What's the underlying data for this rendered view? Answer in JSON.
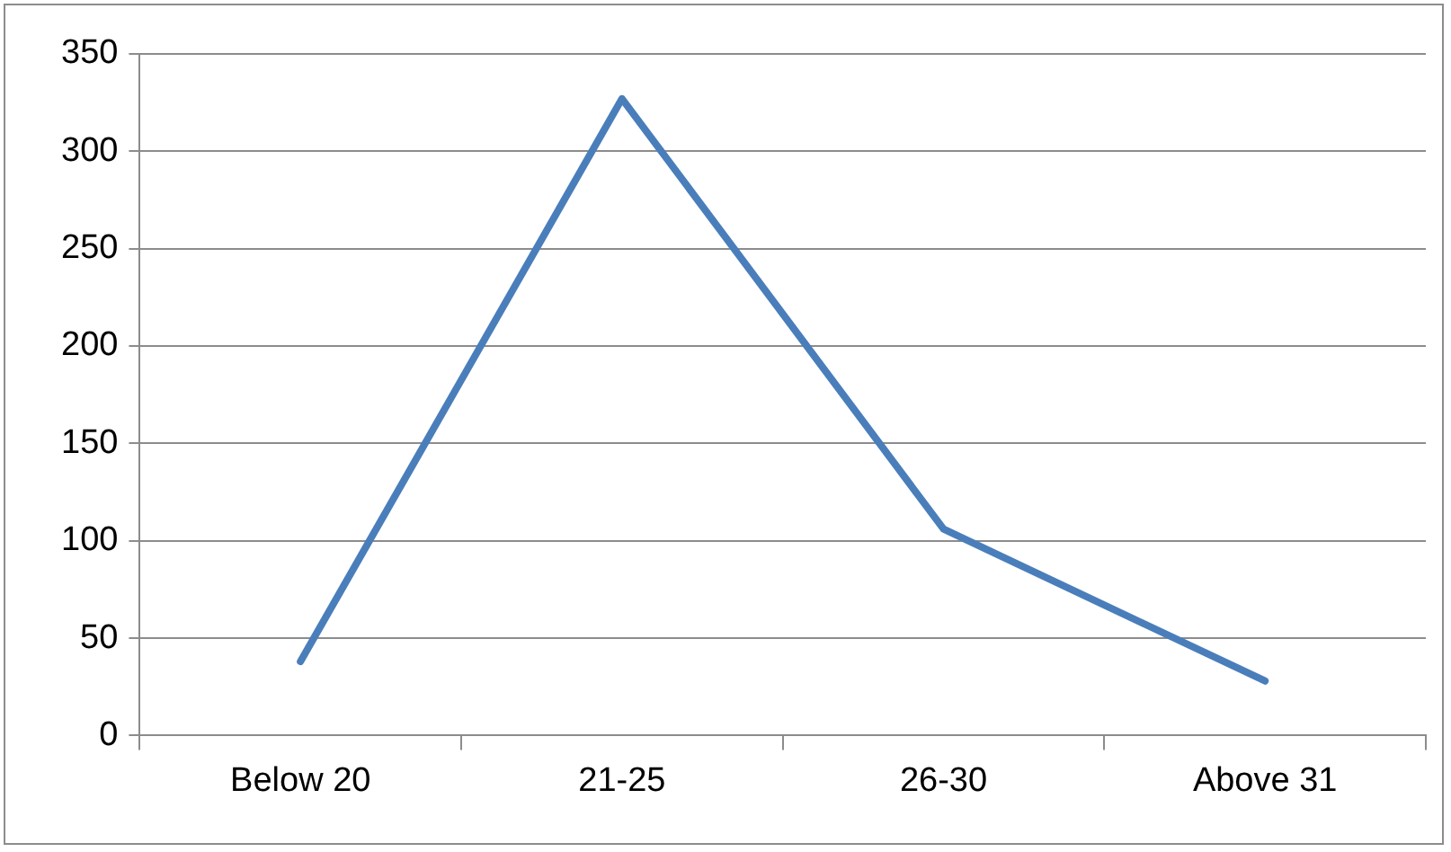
{
  "chart_data": {
    "type": "line",
    "categories": [
      "Below 20",
      "21-25",
      "26-30",
      "Above 31"
    ],
    "series": [
      {
        "color": "#4a7ebb",
        "values": [
          38,
          327,
          106,
          28
        ]
      }
    ],
    "ylim": [
      0,
      350
    ],
    "yticks": [
      0,
      50,
      100,
      150,
      200,
      250,
      300,
      350
    ],
    "grid": "y",
    "legend": false,
    "marker": "none",
    "line_style": "solid"
  }
}
